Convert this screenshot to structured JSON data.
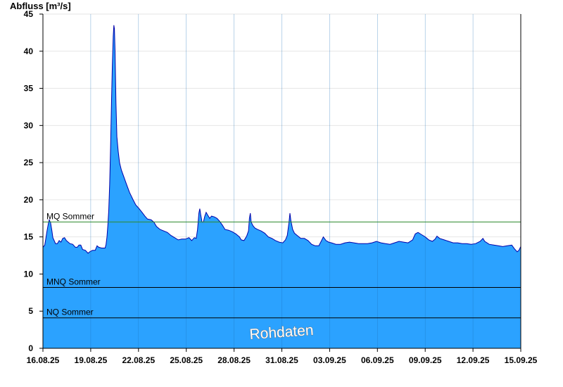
{
  "chart_data": {
    "type": "area",
    "ylabel": "Abfluss [m³/s]",
    "ylim": [
      0,
      45
    ],
    "yticks": [
      0,
      5,
      10,
      15,
      20,
      25,
      30,
      35,
      40,
      45
    ],
    "xlabels": [
      "16.08.25",
      "19.08.25",
      "22.08.25",
      "25.08.25",
      "28.08.25",
      "31.08.25",
      "03.09.25",
      "06.09.25",
      "09.09.25",
      "12.09.25",
      "15.09.25"
    ],
    "xrange_days": [
      0,
      30
    ],
    "grid": true,
    "colors": {
      "area": "#2ba2ff",
      "outline": "#0000aa",
      "mq_line": "#2e8b2e",
      "ref_line": "#000000",
      "grid": "#e6e6e6"
    },
    "reference_lines": [
      {
        "label": "MQ Sommer",
        "value": 17.0,
        "color": "#2e8b2e"
      },
      {
        "label": "MNQ Sommer",
        "value": 8.2,
        "color": "#000000"
      },
      {
        "label": "NQ Sommer",
        "value": 4.1,
        "color": "#000000"
      }
    ],
    "watermark": "Rohdaten",
    "series": [
      {
        "points": [
          [
            0.0,
            13.6
          ],
          [
            0.2,
            13.9
          ],
          [
            0.3,
            14.6
          ],
          [
            0.45,
            15.8
          ],
          [
            0.6,
            16.8
          ],
          [
            0.7,
            17.3
          ],
          [
            0.85,
            16.9
          ],
          [
            1.0,
            15.8
          ],
          [
            1.1,
            14.9
          ],
          [
            1.25,
            14.5
          ],
          [
            1.4,
            14.1
          ],
          [
            1.6,
            14.1
          ],
          [
            1.8,
            14.5
          ],
          [
            2.0,
            14.3
          ],
          [
            2.2,
            14.8
          ],
          [
            2.4,
            14.9
          ],
          [
            2.6,
            14.5
          ],
          [
            2.8,
            14.3
          ],
          [
            3.0,
            14.1
          ],
          [
            3.3,
            14.0
          ],
          [
            3.6,
            13.6
          ],
          [
            3.8,
            13.6
          ],
          [
            4.0,
            13.9
          ],
          [
            4.2,
            13.9
          ],
          [
            4.4,
            13.3
          ],
          [
            4.7,
            13.2
          ],
          [
            5.0,
            12.8
          ],
          [
            5.2,
            13.0
          ],
          [
            5.5,
            13.2
          ],
          [
            5.8,
            13.2
          ],
          [
            6.0,
            13.8
          ],
          [
            6.2,
            13.6
          ],
          [
            6.5,
            13.5
          ],
          [
            6.9,
            13.5
          ],
          [
            7.0,
            14.0
          ],
          [
            7.1,
            15.0
          ],
          [
            7.2,
            16.5
          ],
          [
            7.3,
            18.5
          ],
          [
            7.4,
            22.0
          ],
          [
            7.5,
            27.0
          ],
          [
            7.6,
            33.0
          ],
          [
            7.7,
            38.0
          ],
          [
            7.8,
            42.0
          ],
          [
            7.87,
            43.5
          ],
          [
            7.93,
            43.0
          ],
          [
            8.0,
            40.0
          ],
          [
            8.1,
            33.0
          ],
          [
            8.2,
            28.5
          ],
          [
            8.35,
            26.5
          ],
          [
            8.5,
            25.0
          ],
          [
            8.7,
            24.0
          ],
          [
            9.0,
            23.0
          ],
          [
            9.3,
            22.0
          ],
          [
            9.6,
            21.0
          ],
          [
            10.0,
            20.0
          ],
          [
            10.3,
            19.3
          ],
          [
            10.6,
            18.9
          ],
          [
            11.0,
            18.3
          ],
          [
            11.3,
            17.8
          ],
          [
            11.6,
            17.4
          ],
          [
            12.0,
            17.3
          ],
          [
            12.3,
            17.0
          ],
          [
            12.6,
            16.4
          ],
          [
            13.0,
            16.0
          ],
          [
            13.4,
            15.8
          ],
          [
            13.8,
            15.6
          ],
          [
            14.2,
            15.2
          ],
          [
            14.6,
            14.9
          ],
          [
            15.0,
            14.6
          ],
          [
            15.4,
            14.7
          ],
          [
            15.8,
            14.7
          ],
          [
            16.2,
            14.9
          ],
          [
            16.5,
            14.5
          ],
          [
            16.8,
            14.9
          ],
          [
            17.0,
            14.8
          ],
          [
            17.15,
            16.0
          ],
          [
            17.3,
            18.2
          ],
          [
            17.4,
            18.8
          ],
          [
            17.5,
            18.0
          ],
          [
            17.65,
            17.0
          ],
          [
            17.8,
            17.0
          ],
          [
            17.95,
            17.8
          ],
          [
            18.1,
            18.3
          ],
          [
            18.3,
            17.9
          ],
          [
            18.5,
            17.5
          ],
          [
            18.7,
            17.8
          ],
          [
            19.0,
            17.7
          ],
          [
            19.3,
            17.5
          ],
          [
            19.6,
            17.1
          ],
          [
            19.9,
            16.6
          ],
          [
            20.2,
            16.0
          ],
          [
            20.6,
            15.9
          ],
          [
            21.0,
            15.7
          ],
          [
            21.4,
            15.4
          ],
          [
            21.8,
            15.0
          ],
          [
            22.0,
            14.6
          ],
          [
            22.3,
            14.5
          ],
          [
            22.6,
            15.1
          ],
          [
            22.8,
            15.8
          ],
          [
            22.9,
            17.5
          ],
          [
            23.0,
            18.2
          ],
          [
            23.1,
            17.0
          ],
          [
            23.3,
            16.5
          ],
          [
            23.5,
            16.2
          ],
          [
            23.8,
            16.0
          ],
          [
            24.2,
            15.8
          ],
          [
            24.6,
            15.5
          ],
          [
            25.0,
            15.0
          ],
          [
            25.4,
            14.8
          ],
          [
            25.8,
            14.5
          ],
          [
            26.2,
            14.3
          ],
          [
            26.6,
            14.2
          ],
          [
            26.9,
            14.6
          ],
          [
            27.1,
            15.2
          ],
          [
            27.3,
            17.0
          ],
          [
            27.4,
            18.2
          ],
          [
            27.5,
            17.2
          ],
          [
            27.7,
            16.0
          ],
          [
            27.9,
            15.5
          ],
          [
            28.2,
            15.2
          ],
          [
            28.6,
            14.8
          ],
          [
            29.0,
            14.8
          ],
          [
            29.4,
            14.5
          ],
          [
            29.8,
            14.0
          ],
          [
            30.2,
            13.8
          ],
          [
            30.6,
            13.8
          ],
          [
            30.9,
            14.5
          ],
          [
            31.1,
            15.0
          ],
          [
            31.4,
            14.5
          ],
          [
            31.7,
            14.3
          ],
          [
            32.0,
            14.2
          ],
          [
            32.5,
            14.0
          ],
          [
            33.0,
            14.0
          ],
          [
            33.5,
            14.2
          ],
          [
            34.0,
            14.3
          ],
          [
            34.5,
            14.2
          ],
          [
            35.0,
            14.1
          ],
          [
            35.5,
            14.1
          ],
          [
            36.0,
            14.1
          ],
          [
            36.5,
            14.2
          ],
          [
            37.0,
            14.4
          ],
          [
            37.5,
            14.2
          ],
          [
            38.0,
            14.1
          ],
          [
            38.5,
            14.0
          ],
          [
            39.0,
            14.2
          ],
          [
            39.5,
            14.4
          ],
          [
            40.0,
            14.3
          ],
          [
            40.5,
            14.2
          ],
          [
            41.0,
            14.6
          ],
          [
            41.3,
            15.4
          ],
          [
            41.6,
            15.6
          ],
          [
            42.0,
            15.3
          ],
          [
            42.4,
            15.0
          ],
          [
            42.8,
            14.6
          ],
          [
            43.2,
            14.4
          ],
          [
            43.5,
            14.7
          ],
          [
            43.7,
            15.1
          ],
          [
            44.0,
            14.8
          ],
          [
            44.5,
            14.6
          ],
          [
            45.0,
            14.4
          ],
          [
            45.5,
            14.2
          ],
          [
            46.0,
            14.2
          ],
          [
            46.5,
            14.1
          ],
          [
            47.0,
            14.1
          ],
          [
            47.5,
            14.0
          ],
          [
            48.0,
            14.1
          ],
          [
            48.5,
            14.4
          ],
          [
            48.8,
            14.8
          ],
          [
            49.0,
            14.4
          ],
          [
            49.5,
            14.0
          ],
          [
            50.0,
            13.9
          ],
          [
            50.5,
            13.8
          ],
          [
            51.0,
            13.7
          ],
          [
            51.5,
            13.8
          ],
          [
            52.0,
            13.9
          ],
          [
            52.3,
            13.4
          ],
          [
            52.6,
            13.0
          ],
          [
            52.8,
            13.2
          ],
          [
            53.0,
            13.7
          ]
        ]
      }
    ]
  }
}
